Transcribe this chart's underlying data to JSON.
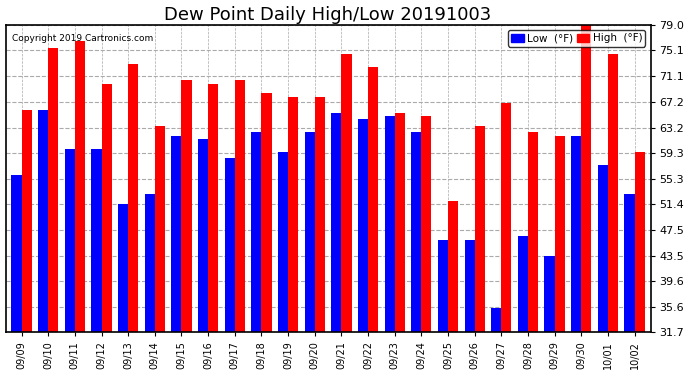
{
  "title": "Dew Point Daily High/Low 20191003",
  "copyright": "Copyright 2019 Cartronics.com",
  "dates": [
    "09/09",
    "09/10",
    "09/11",
    "09/12",
    "09/13",
    "09/14",
    "09/15",
    "09/16",
    "09/17",
    "09/18",
    "09/19",
    "09/20",
    "09/21",
    "09/22",
    "09/23",
    "09/24",
    "09/25",
    "09/26",
    "09/27",
    "09/28",
    "09/29",
    "09/30",
    "10/01",
    "10/02"
  ],
  "low": [
    56.0,
    66.0,
    60.0,
    60.0,
    51.5,
    53.0,
    62.0,
    61.5,
    58.5,
    62.5,
    59.5,
    62.5,
    65.5,
    64.5,
    65.0,
    62.5,
    46.0,
    46.0,
    35.5,
    46.5,
    43.5,
    62.0,
    57.5,
    53.0
  ],
  "high": [
    66.0,
    75.5,
    76.5,
    70.0,
    73.0,
    63.5,
    70.5,
    70.0,
    70.5,
    68.5,
    68.0,
    68.0,
    74.5,
    72.5,
    65.5,
    65.0,
    52.0,
    63.5,
    67.0,
    62.5,
    62.0,
    79.0,
    74.5,
    59.5
  ],
  "low_color": "#0000ff",
  "high_color": "#ff0000",
  "background_color": "#ffffff",
  "grid_color": "#aaaaaa",
  "yticks": [
    31.7,
    35.6,
    39.6,
    43.5,
    47.5,
    51.4,
    55.3,
    59.3,
    63.2,
    67.2,
    71.1,
    75.1,
    79.0
  ],
  "ymin": 31.7,
  "ymax": 79.0,
  "title_fontsize": 13,
  "tick_fontsize": 8,
  "xlabel_fontsize": 7,
  "legend_low_label": "Low  (°F)",
  "legend_high_label": "High  (°F)"
}
